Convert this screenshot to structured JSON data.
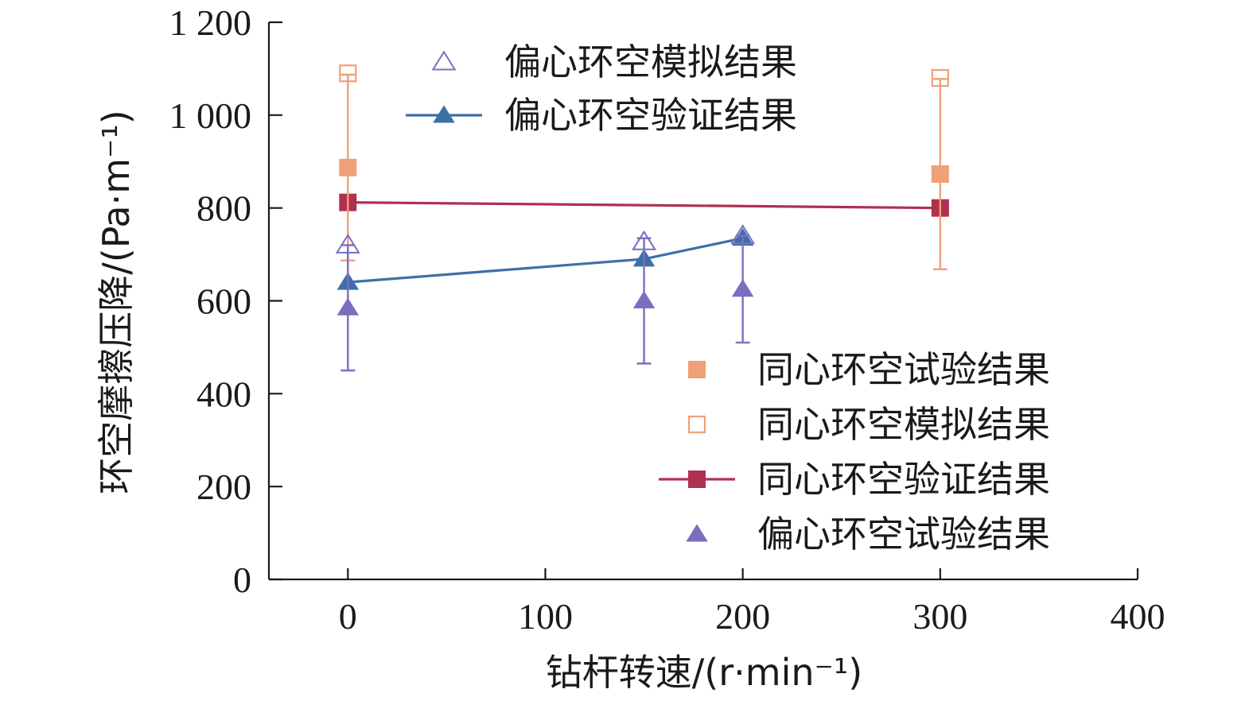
{
  "chart_data": {
    "type": "line",
    "xlabel": "钻杆转速/(r·min⁻¹)",
    "ylabel": "环空摩擦压降/(Pa·m⁻¹)",
    "xlim": [
      -40,
      400
    ],
    "ylim": [
      0,
      1200
    ],
    "xticks": [
      0,
      100,
      200,
      300,
      400
    ],
    "xtick_labels": [
      "0",
      "100",
      "200",
      "300",
      "400"
    ],
    "yticks": [
      0,
      200,
      400,
      600,
      800,
      1000,
      1200
    ],
    "ytick_labels": [
      "0",
      "200",
      "400",
      "600",
      "800",
      "1 000",
      "1 200"
    ],
    "series": [
      {
        "name": "同心环空试验结果",
        "kind": "scatter",
        "marker": "square-filled",
        "color": "#f0a077",
        "x": [
          0,
          300
        ],
        "y": [
          887,
          873
        ],
        "error": [
          200,
          205
        ]
      },
      {
        "name": "同心环空模拟结果",
        "kind": "scatter",
        "marker": "square-open",
        "color": "#f0a077",
        "x": [
          0,
          300
        ],
        "y": [
          1090,
          1080
        ]
      },
      {
        "name": "同心环空验证结果",
        "kind": "line",
        "marker": "square-filled",
        "color": "#b0304f",
        "x": [
          0,
          300
        ],
        "y": [
          812,
          800
        ]
      },
      {
        "name": "偏心环空试验结果",
        "kind": "scatter",
        "marker": "triangle-filled",
        "color": "#7a6fbf",
        "x": [
          0,
          150,
          200
        ],
        "y": [
          585,
          600,
          625
        ],
        "error": [
          135,
          135,
          115
        ]
      },
      {
        "name": "偏心环空模拟结果",
        "kind": "scatter",
        "marker": "triangle-open",
        "color": "#7a6fbf",
        "x": [
          0,
          150,
          200
        ],
        "y": [
          720,
          727,
          740
        ]
      },
      {
        "name": "偏心环空验证结果",
        "kind": "line",
        "marker": "triangle-filled",
        "color": "#3f6fa8",
        "x": [
          0,
          150,
          200
        ],
        "y": [
          640,
          690,
          735
        ]
      }
    ],
    "legend_top": [
      "偏心环空模拟结果",
      "偏心环空验证结果"
    ],
    "legend_bottom": [
      "同心环空试验结果",
      "同心环空模拟结果",
      "同心环空验证结果",
      "偏心环空试验结果"
    ]
  }
}
